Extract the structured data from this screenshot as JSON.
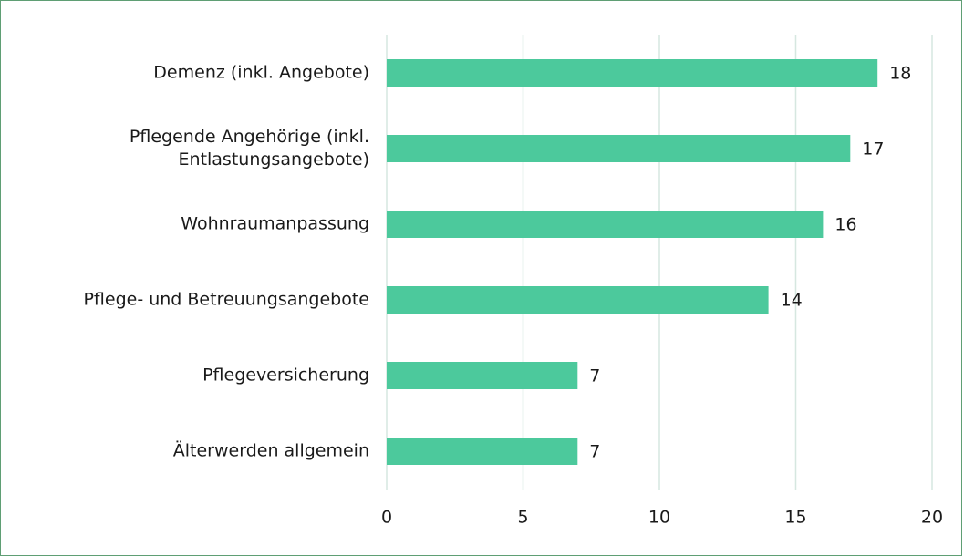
{
  "chart_data": {
    "type": "barh",
    "categories": [
      "Demenz (inkl. Angebote)",
      "Pflegende Angehörige (inkl. Entlastungsangebote)",
      "Wohnraumanpassung",
      "Pflege- und Betreuungsangebote",
      "Pflegeversicherung",
      "Älterwerden allgemein"
    ],
    "values": [
      18,
      17,
      16,
      14,
      7,
      7
    ],
    "color": "#4cc99c",
    "xlim": [
      0,
      20
    ],
    "xticks": [
      0,
      5,
      10,
      15,
      20
    ],
    "grid": true
  }
}
